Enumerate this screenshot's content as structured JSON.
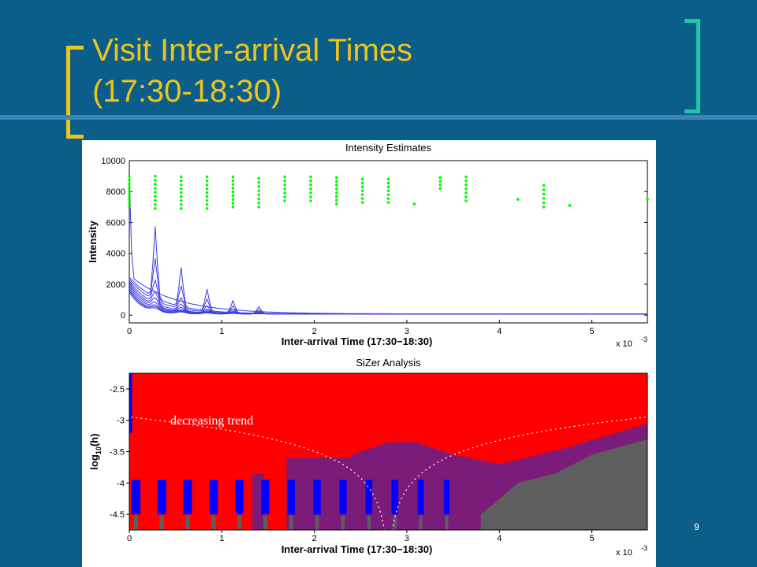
{
  "slide": {
    "title_line1": "Visit Inter-arrival Times",
    "title_line2": "(17:30-18:30)",
    "page_number": "9",
    "colors": {
      "background": "#0b5d8a",
      "title": "#f0c419",
      "bracket_left": "#f0c419",
      "bracket_right": "#1ec8a3"
    }
  },
  "chart_data": [
    {
      "type": "line",
      "title": "Intensity Estimates",
      "xlabel": "Inter-arrival Time (17:30−18:30)",
      "ylabel": "Intensity",
      "x_scale_note": "x 10",
      "x_scale_exp": "-3",
      "xlim": [
        0,
        5.6
      ],
      "ylim": [
        -500,
        10000
      ],
      "x_ticks": [
        "0",
        "1",
        "2",
        "3",
        "4",
        "5"
      ],
      "y_ticks": [
        "0",
        "2000",
        "4000",
        "6000",
        "8000",
        "10000"
      ],
      "series_color": "#3a3ae6",
      "points_color": "#00ff00",
      "series": [
        {
          "decay": 0.5,
          "spike": 0,
          "values_at": {
            "x": [
              0,
              0.5,
              1,
              2,
              3,
              5.6
            ],
            "y": [
              2500,
              950,
              450,
              180,
              110,
              80
            ]
          }
        },
        {
          "decay": 0.35,
          "spike": 4600
        },
        {
          "decay": 0.3,
          "spike": 2700
        },
        {
          "decay": 0.25,
          "spike": 1500
        },
        {
          "decay": 0.22,
          "spike": 900
        },
        {
          "decay": 0.2,
          "spike": 600
        },
        {
          "decay": 0.18,
          "spike": 400
        },
        {
          "decay": 0.16,
          "spike": 300
        },
        {
          "decay": 0.15,
          "spike": 250
        },
        {
          "decay": 0.14,
          "spike": 200
        }
      ],
      "data_columns": [
        {
          "x": 0.0,
          "y": [
            7000,
            9000
          ]
        },
        {
          "x": 0.28,
          "y": [
            6900,
            9000
          ]
        },
        {
          "x": 0.56,
          "y": [
            6900,
            8950
          ]
        },
        {
          "x": 0.84,
          "y": [
            6900,
            8950
          ]
        },
        {
          "x": 1.12,
          "y": [
            7000,
            8950
          ]
        },
        {
          "x": 1.4,
          "y": [
            7000,
            8850
          ]
        },
        {
          "x": 1.68,
          "y": [
            7400,
            8950
          ]
        },
        {
          "x": 1.96,
          "y": [
            7400,
            8950
          ]
        },
        {
          "x": 2.24,
          "y": [
            7200,
            8900
          ]
        },
        {
          "x": 2.52,
          "y": [
            7300,
            8800
          ]
        },
        {
          "x": 2.8,
          "y": [
            7300,
            8800
          ]
        },
        {
          "x": 3.08,
          "y": [
            7200,
            7200
          ]
        },
        {
          "x": 3.36,
          "y": [
            8200,
            8900
          ]
        },
        {
          "x": 3.64,
          "y": [
            7400,
            8950
          ]
        },
        {
          "x": 4.2,
          "y": [
            7500,
            7500
          ]
        },
        {
          "x": 4.48,
          "y": [
            7000,
            8400
          ]
        },
        {
          "x": 4.76,
          "y": [
            7100,
            7100
          ]
        },
        {
          "x": 5.6,
          "y": [
            7500,
            7500
          ]
        }
      ]
    },
    {
      "type": "heatmap",
      "title": "SiZer Analysis",
      "xlabel": "Inter-arrival Time (17:30−18:30)",
      "ylabel": "log10(h)",
      "x_scale_note": "x 10",
      "x_scale_exp": "-3",
      "xlim": [
        0,
        5.6
      ],
      "ylim": [
        -4.75,
        -2.25
      ],
      "x_ticks": [
        "0",
        "1",
        "2",
        "3",
        "4",
        "5"
      ],
      "y_ticks": [
        "-2.5",
        "-3",
        "-3.5",
        "-4",
        "-4.5"
      ],
      "colors": {
        "decreasing": "#ff0000",
        "increasing": "#0000ff",
        "insignificant": "#7b1c7b",
        "sparse": "#5e5e5e"
      },
      "annotation": "decreasing trend",
      "purple_band": [
        [
          2.4,
          -3.55
        ],
        [
          2.8,
          -3.35
        ],
        [
          3.1,
          -3.35
        ],
        [
          3.5,
          -3.55
        ],
        [
          4.0,
          -3.7
        ],
        [
          4.7,
          -3.45
        ],
        [
          5.6,
          -3.05
        ]
      ],
      "gray_region": [
        [
          3.8,
          -4.5
        ],
        [
          4.2,
          -4.0
        ],
        [
          4.6,
          -3.85
        ],
        [
          5.0,
          -3.55
        ],
        [
          5.6,
          -3.3
        ]
      ]
    }
  ]
}
